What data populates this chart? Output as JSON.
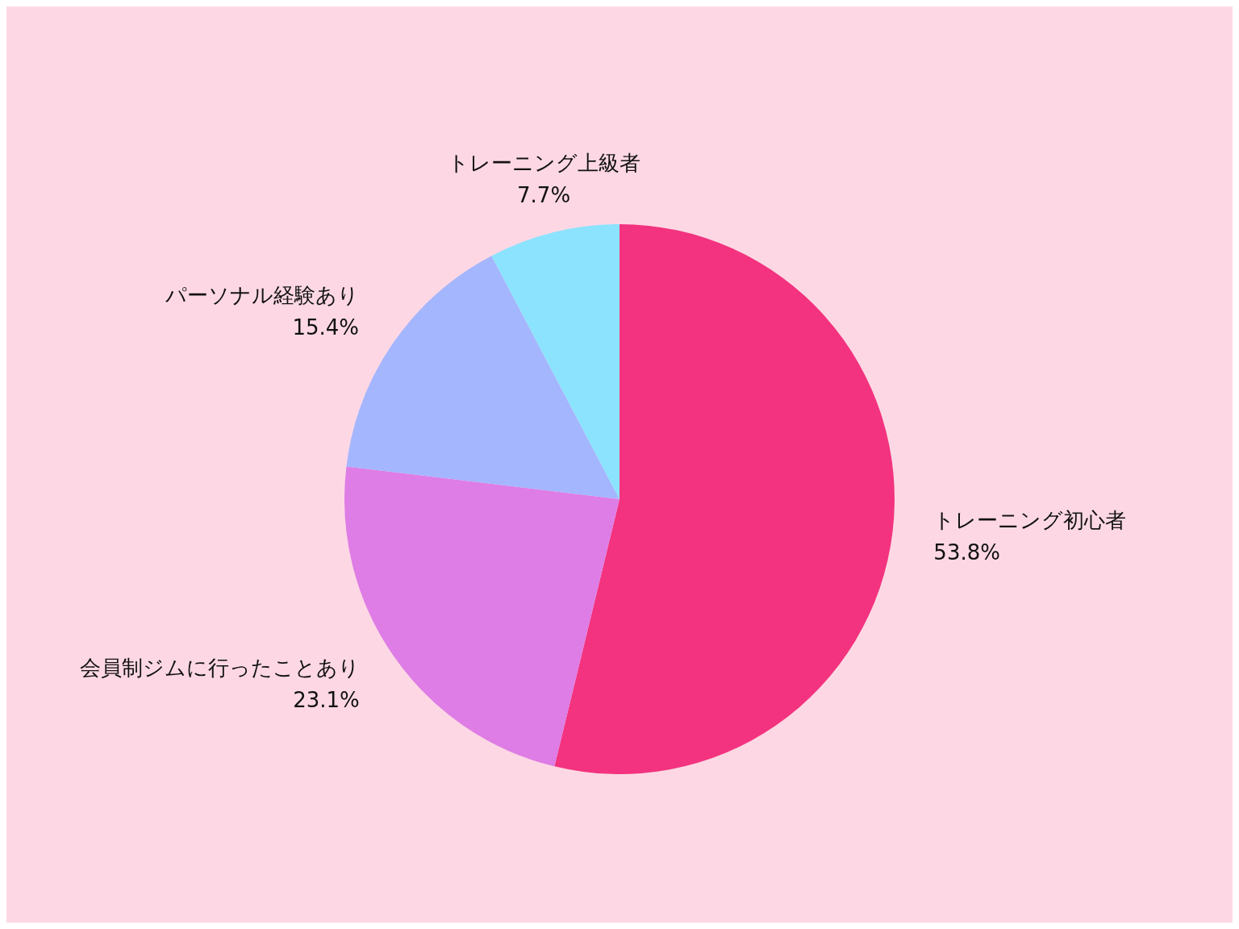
{
  "chart_data": {
    "type": "pie",
    "categories": [
      "トレーニング初心者",
      "会員制ジムに行ったことあり",
      "パーソナル経験あり",
      "トレーニング上級者"
    ],
    "values": [
      53.8,
      23.1,
      15.4,
      7.7
    ],
    "colors": [
      "#f3337f",
      "#de7de5",
      "#a4b6fe",
      "#8ce3fe"
    ],
    "value_labels": [
      "53.8%",
      "23.1%",
      "15.4%",
      "7.7%"
    ],
    "legend": false
  }
}
